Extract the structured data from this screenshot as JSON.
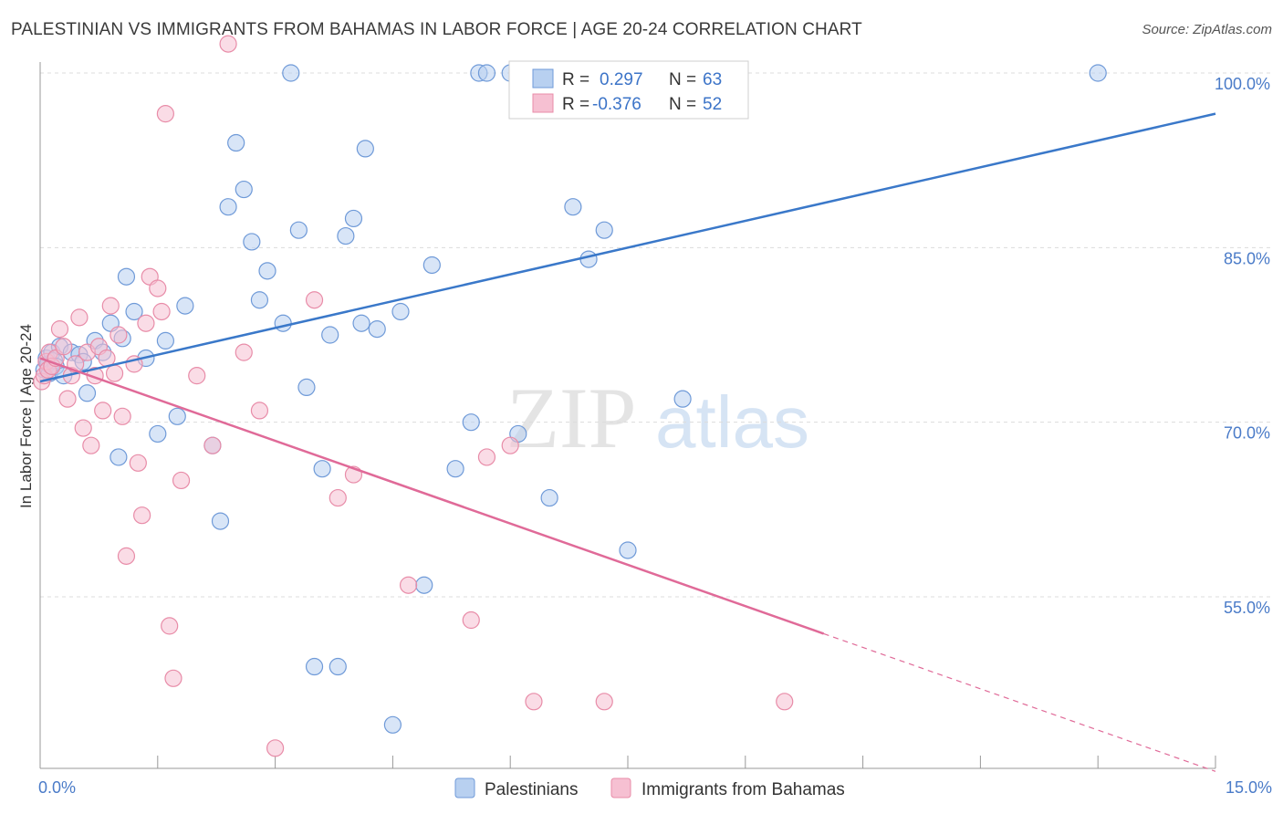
{
  "title": "PALESTINIAN VS IMMIGRANTS FROM BAHAMAS IN LABOR FORCE | AGE 20-24 CORRELATION CHART",
  "source": "Source: ZipAtlas.com",
  "watermark": {
    "zip": "ZIP",
    "atlas": "atlas"
  },
  "colors": {
    "blue_fill": "#b8d0f0",
    "blue_stroke": "#6f9ad8",
    "blue_line": "#3a78c9",
    "pink_fill": "#f6c0d2",
    "pink_stroke": "#e88ca8",
    "pink_line": "#e06a98",
    "grid": "#dcdcdc",
    "tick_label": "#4a7bc8"
  },
  "stats": {
    "r_label": "R =",
    "n_label": "N =",
    "series": [
      {
        "r": "0.297",
        "n": "63"
      },
      {
        "r": "-0.376",
        "n": "52"
      }
    ]
  },
  "chart_data": {
    "type": "scatter",
    "xlabel": "",
    "ylabel": "In Labor Force | Age 20-24",
    "xlim": [
      0,
      15
    ],
    "ylim": [
      40,
      100
    ],
    "x_tick_labels": [
      "0.0%",
      "15.0%"
    ],
    "y_ticks": [
      55,
      70,
      85,
      100
    ],
    "y_tick_labels": [
      "55.0%",
      "70.0%",
      "85.0%",
      "100.0%"
    ],
    "grid": true,
    "legend_position": "top-center",
    "series": [
      {
        "name": "Palestinians",
        "color": "#6f9ad8",
        "trend": {
          "x0": 0.0,
          "y0": 73.5,
          "x1": 15.0,
          "y1": 96.5
        },
        "points": [
          [
            0.05,
            74.5
          ],
          [
            0.08,
            75.5
          ],
          [
            0.1,
            75.0
          ],
          [
            0.12,
            74.2
          ],
          [
            0.15,
            76.0
          ],
          [
            0.18,
            75.3
          ],
          [
            0.2,
            74.8
          ],
          [
            0.25,
            76.5
          ],
          [
            0.3,
            74.0
          ],
          [
            0.4,
            76.0
          ],
          [
            0.5,
            75.8
          ],
          [
            0.55,
            75.2
          ],
          [
            0.6,
            72.5
          ],
          [
            0.7,
            77.0
          ],
          [
            0.8,
            76.0
          ],
          [
            0.9,
            78.5
          ],
          [
            1.0,
            67.0
          ],
          [
            1.05,
            77.2
          ],
          [
            1.1,
            82.5
          ],
          [
            1.2,
            79.5
          ],
          [
            1.35,
            75.5
          ],
          [
            1.5,
            69.0
          ],
          [
            1.6,
            77.0
          ],
          [
            1.75,
            70.5
          ],
          [
            1.85,
            80.0
          ],
          [
            2.2,
            68.0
          ],
          [
            2.3,
            61.5
          ],
          [
            2.4,
            88.5
          ],
          [
            2.5,
            94.0
          ],
          [
            2.6,
            90.0
          ],
          [
            2.7,
            85.5
          ],
          [
            2.8,
            80.5
          ],
          [
            2.9,
            83.0
          ],
          [
            3.1,
            78.5
          ],
          [
            3.2,
            100.0
          ],
          [
            3.3,
            86.5
          ],
          [
            3.4,
            73.0
          ],
          [
            3.5,
            49.0
          ],
          [
            3.6,
            66.0
          ],
          [
            3.7,
            77.5
          ],
          [
            3.8,
            49.0
          ],
          [
            3.9,
            86.0
          ],
          [
            4.0,
            87.5
          ],
          [
            4.1,
            78.5
          ],
          [
            4.15,
            93.5
          ],
          [
            4.3,
            78.0
          ],
          [
            4.5,
            44.0
          ],
          [
            4.6,
            79.5
          ],
          [
            4.9,
            56.0
          ],
          [
            5.0,
            83.5
          ],
          [
            5.3,
            66.0
          ],
          [
            5.5,
            70.0
          ],
          [
            5.6,
            100.0
          ],
          [
            5.7,
            100.0
          ],
          [
            6.0,
            100.0
          ],
          [
            6.1,
            69.0
          ],
          [
            6.5,
            63.5
          ],
          [
            6.8,
            88.5
          ],
          [
            7.0,
            84.0
          ],
          [
            7.2,
            86.5
          ],
          [
            7.5,
            59.0
          ],
          [
            8.2,
            72.0
          ],
          [
            13.5,
            100.0
          ]
        ]
      },
      {
        "name": "Immigrants from Bahamas",
        "color": "#e88ca8",
        "trend": {
          "x0": 0.0,
          "y0": 75.5,
          "x1": 15.0,
          "y1": 40.0
        },
        "points": [
          [
            0.02,
            73.5
          ],
          [
            0.05,
            74.0
          ],
          [
            0.08,
            75.2
          ],
          [
            0.1,
            74.5
          ],
          [
            0.12,
            76.0
          ],
          [
            0.15,
            74.8
          ],
          [
            0.2,
            75.5
          ],
          [
            0.25,
            78.0
          ],
          [
            0.3,
            76.5
          ],
          [
            0.35,
            72.0
          ],
          [
            0.4,
            74.0
          ],
          [
            0.45,
            75.0
          ],
          [
            0.5,
            79.0
          ],
          [
            0.55,
            69.5
          ],
          [
            0.6,
            76.0
          ],
          [
            0.65,
            68.0
          ],
          [
            0.7,
            74.0
          ],
          [
            0.75,
            76.5
          ],
          [
            0.8,
            71.0
          ],
          [
            0.85,
            75.5
          ],
          [
            0.9,
            80.0
          ],
          [
            0.95,
            74.2
          ],
          [
            1.0,
            77.5
          ],
          [
            1.05,
            70.5
          ],
          [
            1.1,
            58.5
          ],
          [
            1.2,
            75.0
          ],
          [
            1.25,
            66.5
          ],
          [
            1.3,
            62.0
          ],
          [
            1.35,
            78.5
          ],
          [
            1.4,
            82.5
          ],
          [
            1.5,
            81.5
          ],
          [
            1.55,
            79.5
          ],
          [
            1.6,
            96.5
          ],
          [
            1.65,
            52.5
          ],
          [
            1.7,
            48.0
          ],
          [
            1.8,
            65.0
          ],
          [
            2.0,
            74.0
          ],
          [
            2.2,
            68.0
          ],
          [
            2.4,
            102.5
          ],
          [
            2.6,
            76.0
          ],
          [
            2.8,
            71.0
          ],
          [
            3.0,
            42.0
          ],
          [
            3.5,
            80.5
          ],
          [
            3.8,
            63.5
          ],
          [
            4.0,
            65.5
          ],
          [
            4.7,
            56.0
          ],
          [
            5.5,
            53.0
          ],
          [
            5.7,
            67.0
          ],
          [
            6.0,
            68.0
          ],
          [
            6.3,
            46.0
          ],
          [
            7.2,
            46.0
          ],
          [
            9.5,
            46.0
          ]
        ]
      }
    ]
  }
}
